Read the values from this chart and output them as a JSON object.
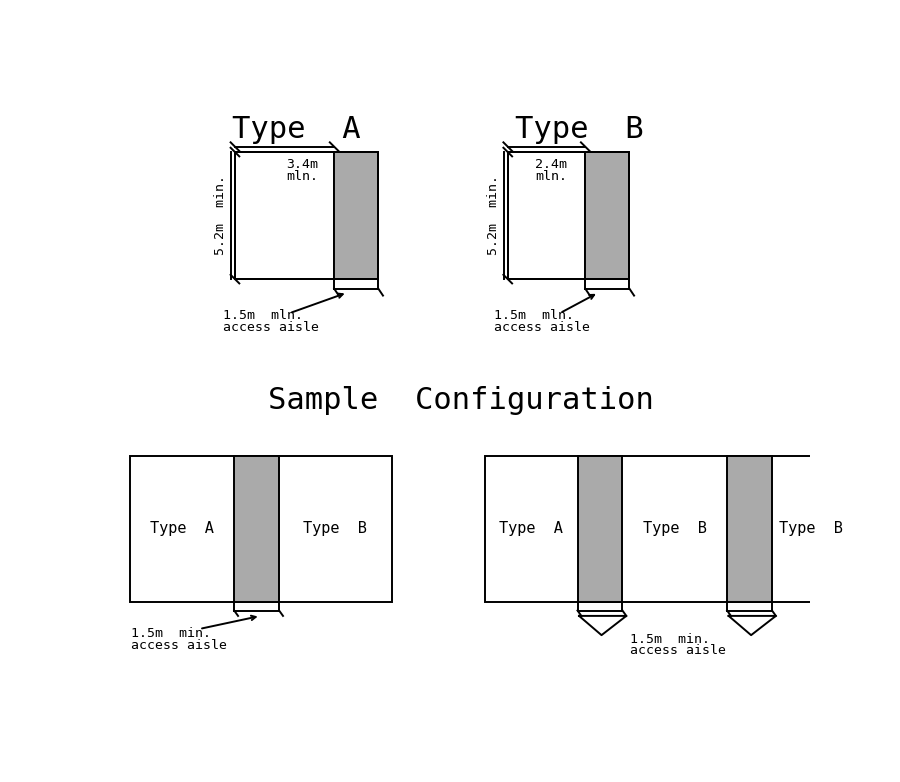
{
  "bg_color": "#ffffff",
  "gray_color": "#aaaaaa",
  "line_color": "#000000",
  "title_typeA": "Type  A",
  "title_typeB": "Type  B",
  "title_sample": "Sample  Configuration",
  "font_size_title": 22,
  "font_size_label": 11,
  "font_size_dim": 9.5,
  "lw": 1.4
}
